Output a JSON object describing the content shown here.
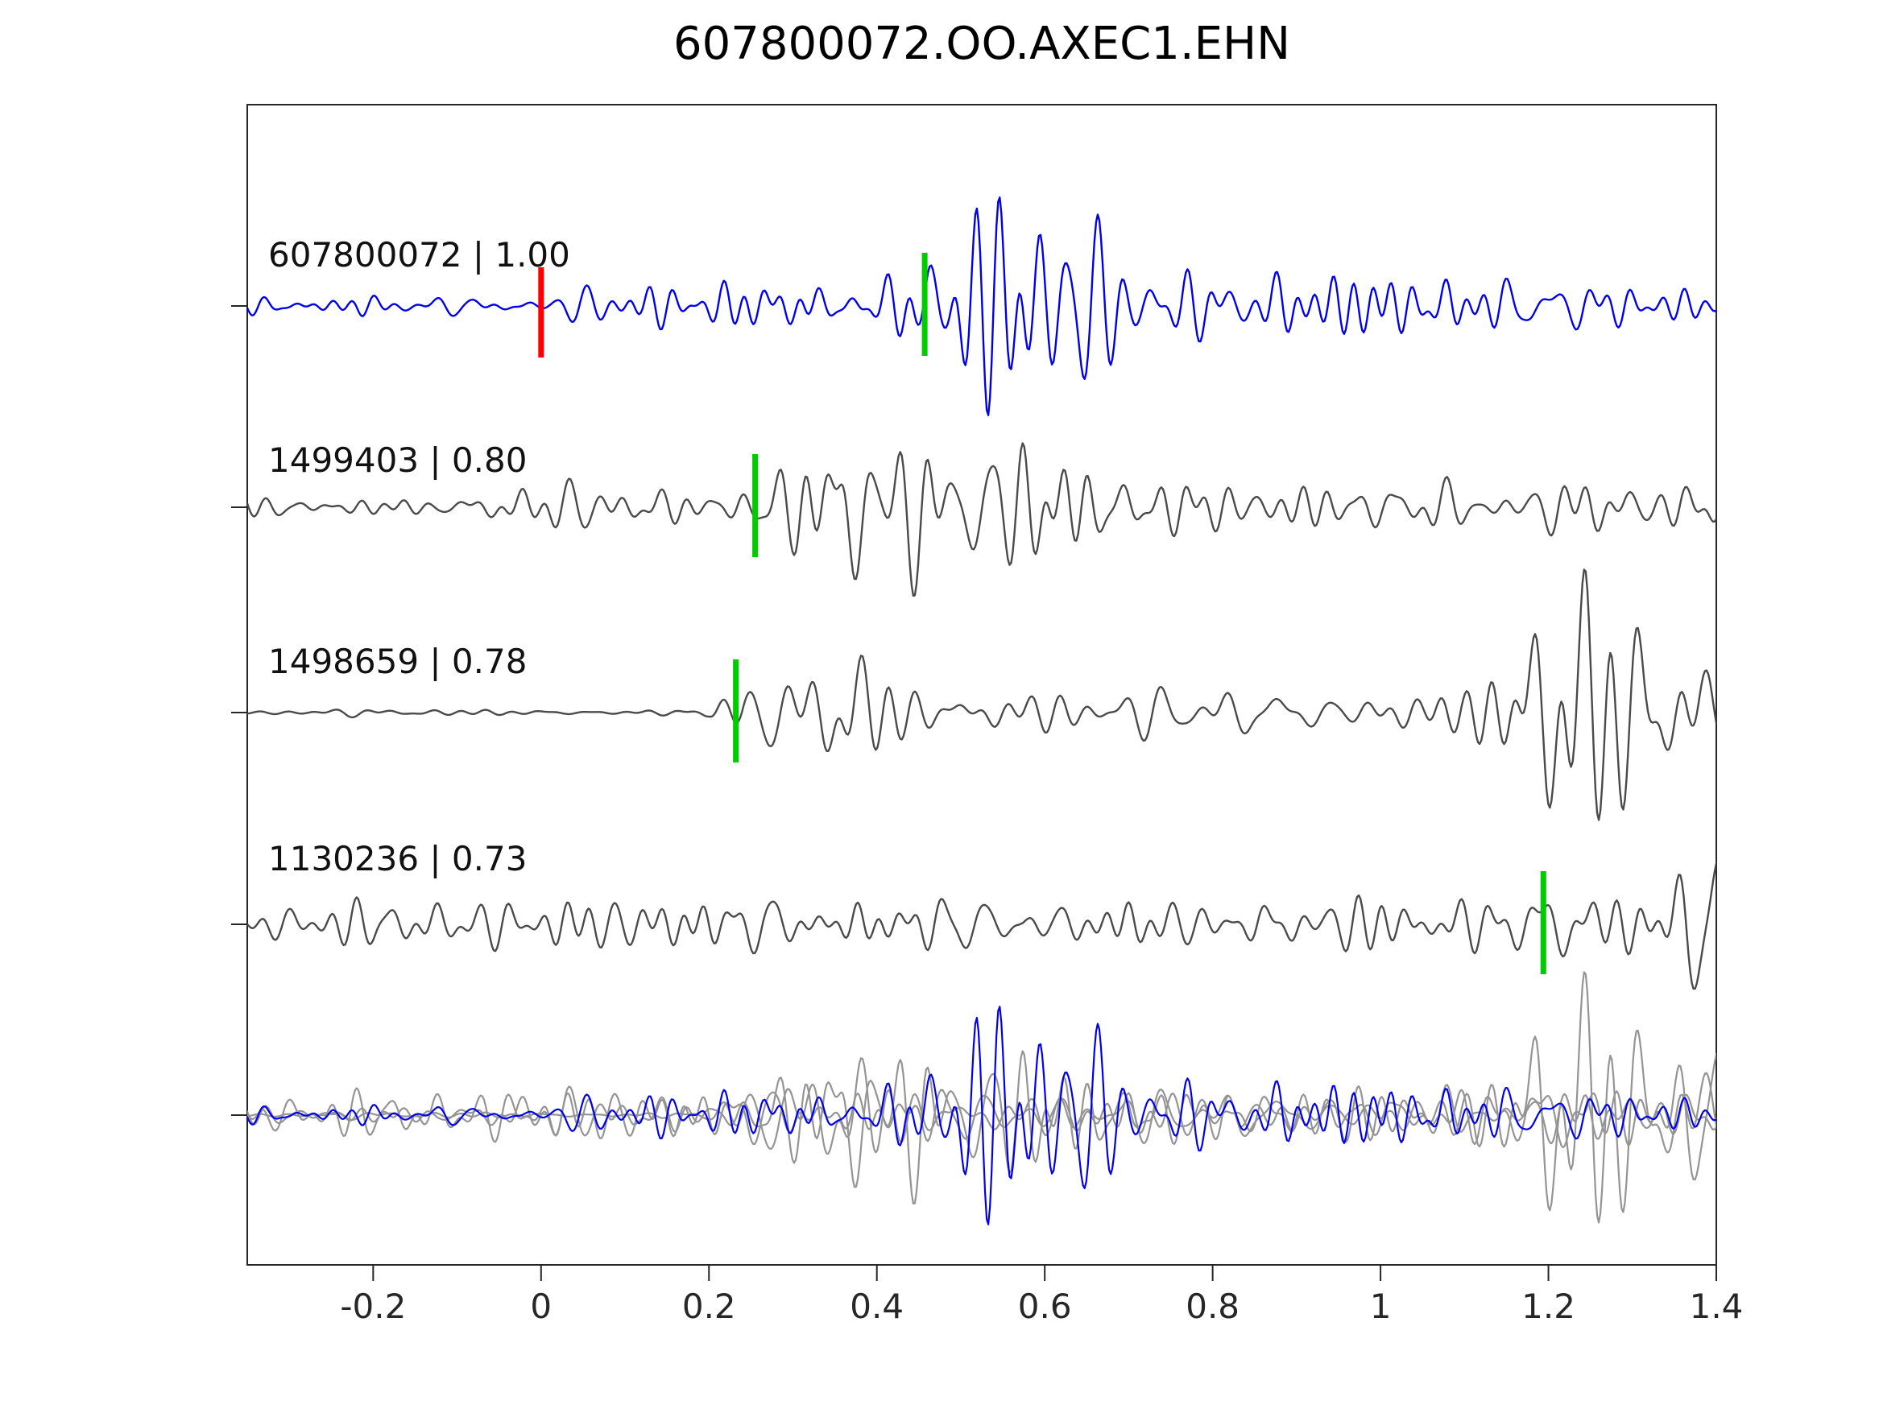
{
  "title": "607800072.OO.AXEC1.EHN",
  "axis": {
    "xmin": -0.35,
    "xmax": 1.4,
    "x_ticks": [
      -0.2,
      0,
      0.2,
      0.4,
      0.6,
      0.8,
      1,
      1.2,
      1.4
    ],
    "x_tick_labels": [
      "-0.2",
      "0",
      "0.2",
      "0.4",
      "0.6",
      "0.8",
      "1",
      "1.2",
      "1.4"
    ]
  },
  "colors": {
    "primary_trace": "#0000ee",
    "row_gray": "#4a4a4a",
    "overlay_gray": "#949494",
    "pick_red": "#ff0000",
    "pick_green": "#00cc00",
    "axis": "#262626",
    "background": "#ffffff"
  },
  "chart_data": {
    "type": "line",
    "title": "607800072.OO.AXEC1.EHN",
    "xlabel": "",
    "ylabel": "",
    "x_range": [
      -0.35,
      1.4
    ],
    "x_ticks": [
      -0.2,
      0,
      0.2,
      0.4,
      0.6,
      0.8,
      1,
      1.2,
      1.4
    ],
    "grid": false,
    "legend_position": "none",
    "description": "Seismic waveform cross-correlation alignment plot: reference trace (blue) with red reference pick and green aligned pick, three matched-event traces (gray) with green picks, and a bottom panel overlaying all traces.",
    "traces": [
      {
        "event_id": "607800072",
        "correlation": 1.0,
        "label": "607800072 | 1.00",
        "color_role": "primary",
        "picks": [
          {
            "x": 0.0,
            "color": "red"
          },
          {
            "x": 0.457,
            "color": "green"
          }
        ],
        "waveform": {
          "seed": 11,
          "freq_min": 14,
          "freq_max": 48,
          "components": 45,
          "envelope": [
            [
              -0.35,
              12
            ],
            [
              -0.1,
              14
            ],
            [
              0.02,
              16
            ],
            [
              0.1,
              26
            ],
            [
              0.2,
              22
            ],
            [
              0.3,
              26
            ],
            [
              0.4,
              30
            ],
            [
              0.45,
              55
            ],
            [
              0.49,
              130
            ],
            [
              0.55,
              105
            ],
            [
              0.6,
              95
            ],
            [
              0.63,
              120
            ],
            [
              0.7,
              70
            ],
            [
              0.78,
              55
            ],
            [
              0.85,
              45
            ],
            [
              0.95,
              42
            ],
            [
              1.05,
              45
            ],
            [
              1.15,
              35
            ],
            [
              1.25,
              30
            ],
            [
              1.4,
              26
            ]
          ]
        }
      },
      {
        "event_id": "1499403",
        "correlation": 0.8,
        "label": "1499403 | 0.80",
        "color_role": "gray",
        "picks": [
          {
            "x": 0.255,
            "color": "green"
          }
        ],
        "waveform": {
          "seed": 22,
          "freq_min": 12,
          "freq_max": 42,
          "components": 45,
          "envelope": [
            [
              -0.35,
              16
            ],
            [
              0.0,
              18
            ],
            [
              0.08,
              32
            ],
            [
              0.15,
              26
            ],
            [
              0.22,
              35
            ],
            [
              0.3,
              50
            ],
            [
              0.36,
              120
            ],
            [
              0.42,
              90
            ],
            [
              0.5,
              65
            ],
            [
              0.56,
              85
            ],
            [
              0.65,
              75
            ],
            [
              0.75,
              50
            ],
            [
              0.85,
              38
            ],
            [
              0.95,
              32
            ],
            [
              1.1,
              26
            ],
            [
              1.25,
              30
            ],
            [
              1.4,
              32
            ]
          ]
        }
      },
      {
        "event_id": "1498659",
        "correlation": 0.78,
        "label": "1498659 | 0.78",
        "color_role": "gray",
        "picks": [
          {
            "x": 0.232,
            "color": "green"
          }
        ],
        "waveform": {
          "seed": 33,
          "freq_min": 10,
          "freq_max": 36,
          "components": 45,
          "envelope": [
            [
              -0.35,
              3
            ],
            [
              0.1,
              4
            ],
            [
              0.2,
              8
            ],
            [
              0.24,
              50
            ],
            [
              0.3,
              45
            ],
            [
              0.37,
              60
            ],
            [
              0.45,
              30
            ],
            [
              0.55,
              28
            ],
            [
              0.65,
              22
            ],
            [
              0.8,
              24
            ],
            [
              0.95,
              20
            ],
            [
              1.05,
              18
            ],
            [
              1.1,
              35
            ],
            [
              1.17,
              110
            ],
            [
              1.27,
              130
            ],
            [
              1.33,
              80
            ],
            [
              1.4,
              45
            ]
          ]
        }
      },
      {
        "event_id": "1130236",
        "correlation": 0.73,
        "label": "1130236 | 0.73",
        "color_role": "gray",
        "picks": [
          {
            "x": 1.194,
            "color": "green"
          }
        ],
        "waveform": {
          "seed": 44,
          "freq_min": 12,
          "freq_max": 44,
          "components": 45,
          "envelope": [
            [
              -0.35,
              26
            ],
            [
              -0.2,
              30
            ],
            [
              0.0,
              28
            ],
            [
              0.15,
              32
            ],
            [
              0.3,
              30
            ],
            [
              0.45,
              28
            ],
            [
              0.6,
              32
            ],
            [
              0.75,
              30
            ],
            [
              0.9,
              32
            ],
            [
              1.0,
              30
            ],
            [
              1.1,
              38
            ],
            [
              1.17,
              55
            ],
            [
              1.22,
              60
            ],
            [
              1.3,
              55
            ],
            [
              1.35,
              60
            ],
            [
              1.4,
              95
            ]
          ]
        }
      }
    ],
    "overlay": {
      "includes": [
        "1498659",
        "1130236",
        "1499403",
        "607800072"
      ],
      "primary": "607800072",
      "note": "All four traces plotted superimposed on a common baseline; primary trace drawn in blue on top, others in light gray."
    }
  }
}
